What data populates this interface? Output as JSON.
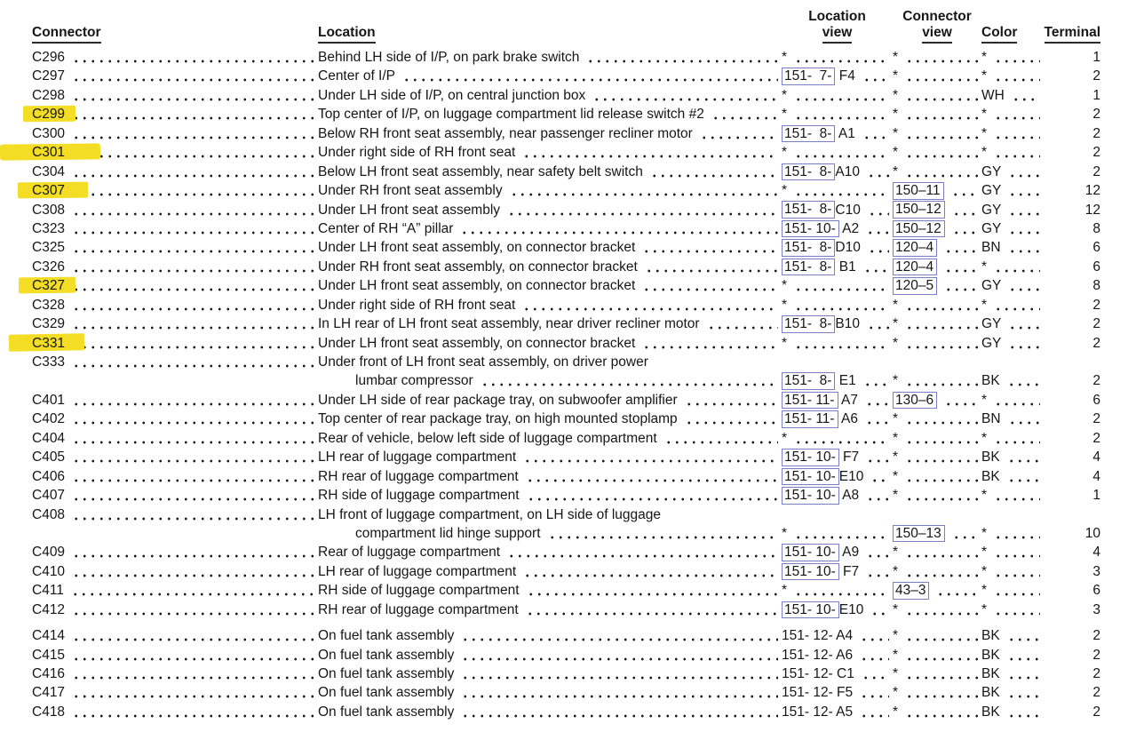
{
  "page": {
    "highlight_color": "#f3de25",
    "reference_box_color": "#7a7ec4",
    "text_color": "#161616"
  },
  "header": {
    "connector": "Connector",
    "location": "Location",
    "location_view": {
      "line1": "Location",
      "line2": "view"
    },
    "connector_view": {
      "line1": "Connector",
      "line2": "view"
    },
    "color": "Color",
    "terminal": "Terminal"
  },
  "rows": [
    {
      "connector": "C296",
      "hl": 0,
      "location": [
        "Behind LH side of I/P, on park brake switch"
      ],
      "loc_view": {
        "star": true
      },
      "conn_view": {
        "star": true
      },
      "color": "*",
      "terminal": "1"
    },
    {
      "connector": "C297",
      "hl": 0,
      "location": [
        "Center of I/P"
      ],
      "loc_view": {
        "box": "151-  7-",
        "suffix": " F4"
      },
      "conn_view": {
        "star": true
      },
      "color": "*",
      "terminal": "2"
    },
    {
      "connector": "C298",
      "hl": 0,
      "location": [
        "Under LH side of I/P, on central junction box"
      ],
      "loc_view": {
        "star": true
      },
      "conn_view": {
        "star": true
      },
      "color": "WH",
      "terminal": "1"
    },
    {
      "connector": "C299",
      "hl": 1,
      "location": [
        "Top center of I/P, on luggage compartment lid release switch #2"
      ],
      "loc_view": {
        "star": true
      },
      "conn_view": {
        "star": true
      },
      "color": "*",
      "terminal": "2"
    },
    {
      "connector": "C300",
      "hl": 0,
      "location": [
        "Below RH front seat assembly, near passenger recliner motor"
      ],
      "loc_view": {
        "box": "151-  8-",
        "suffix": " A1"
      },
      "conn_view": {
        "star": true
      },
      "color": "*",
      "terminal": "2"
    },
    {
      "connector": "C301",
      "hl": 2,
      "location": [
        "Under right side of RH front seat"
      ],
      "loc_view": {
        "star": true
      },
      "conn_view": {
        "star": true
      },
      "color": "*",
      "terminal": "2"
    },
    {
      "connector": "C304",
      "hl": 0,
      "location": [
        "Below LH front seat assembly, near safety belt switch"
      ],
      "loc_view": {
        "box": "151-  8-",
        "suffix": "A10"
      },
      "conn_view": {
        "star": true
      },
      "color": "GY",
      "terminal": "2"
    },
    {
      "connector": "C307",
      "hl": 3,
      "location": [
        "Under RH front seat assembly"
      ],
      "loc_view": {
        "star": true
      },
      "conn_view": {
        "box": "150–11"
      },
      "color": "GY",
      "terminal": "12"
    },
    {
      "connector": "C308",
      "hl": 0,
      "location": [
        "Under LH front seat assembly"
      ],
      "loc_view": {
        "box": "151-  8-",
        "suffix": "C10"
      },
      "conn_view": {
        "box": "150–12"
      },
      "color": "GY",
      "terminal": "12"
    },
    {
      "connector": "C323",
      "hl": 0,
      "location": [
        "Center of RH “A” pillar"
      ],
      "loc_view": {
        "box": "151- 10-",
        "suffix": " A2"
      },
      "conn_view": {
        "box": "150–12"
      },
      "color": "GY",
      "terminal": "8"
    },
    {
      "connector": "C325",
      "hl": 0,
      "location": [
        "Under LH front seat assembly, on connector bracket"
      ],
      "loc_view": {
        "box": "151-  8-",
        "suffix": "D10"
      },
      "conn_view": {
        "box": "120–4"
      },
      "color": "BN",
      "terminal": "6"
    },
    {
      "connector": "C326",
      "hl": 0,
      "location": [
        "Under RH front seat assembly, on connector bracket"
      ],
      "loc_view": {
        "box": "151-  8-",
        "suffix": " B1"
      },
      "conn_view": {
        "box": "120–4"
      },
      "color": "*",
      "terminal": "6"
    },
    {
      "connector": "C327",
      "hl": 4,
      "location": [
        "Under LH front seat assembly, on connector bracket"
      ],
      "loc_view": {
        "star": true
      },
      "conn_view": {
        "box": "120–5"
      },
      "color": "GY",
      "terminal": "8"
    },
    {
      "connector": "C328",
      "hl": 0,
      "location": [
        "Under right side of RH front seat"
      ],
      "loc_view": {
        "star": true
      },
      "conn_view": {
        "star": true
      },
      "color": "*",
      "terminal": "2"
    },
    {
      "connector": "C329",
      "hl": 0,
      "location": [
        "In LH rear of LH front seat assembly, near driver recliner motor"
      ],
      "loc_view": {
        "box": "151-  8-",
        "suffix": "B10"
      },
      "conn_view": {
        "star": true
      },
      "color": "GY",
      "terminal": "2"
    },
    {
      "connector": "C331",
      "hl": 5,
      "location": [
        "Under LH front seat assembly, on connector bracket"
      ],
      "loc_view": {
        "star": true
      },
      "conn_view": {
        "star": true
      },
      "color": "GY",
      "terminal": "2"
    },
    {
      "connector": "C333",
      "hl": 0,
      "location": [
        "Under front of LH front seat assembly, on driver power",
        "lumbar compressor"
      ],
      "loc_view": {
        "box": "151-  8-",
        "suffix": " E1"
      },
      "conn_view": {
        "star": true
      },
      "color": "BK",
      "terminal": "2"
    },
    {
      "connector": "C401",
      "hl": 0,
      "location": [
        "Under LH side of rear package tray, on subwoofer amplifier"
      ],
      "loc_view": {
        "box": "151- 11-",
        "suffix": " A7"
      },
      "conn_view": {
        "box": "130–6"
      },
      "color": "*",
      "terminal": "6"
    },
    {
      "connector": "C402",
      "hl": 0,
      "location": [
        "Top center of rear package tray, on high mounted stoplamp"
      ],
      "loc_view": {
        "box": "151- 11-",
        "suffix": " A6"
      },
      "conn_view": {
        "star": true
      },
      "color": "BN",
      "terminal": "2"
    },
    {
      "connector": "C404",
      "hl": 0,
      "location": [
        "Rear of vehicle, below left side of luggage compartment"
      ],
      "loc_view": {
        "star": true
      },
      "conn_view": {
        "star": true
      },
      "color": "*",
      "terminal": "2"
    },
    {
      "connector": "C405",
      "hl": 0,
      "location": [
        "LH rear of luggage compartment"
      ],
      "loc_view": {
        "box": "151- 10-",
        "suffix": " F7"
      },
      "conn_view": {
        "star": true
      },
      "color": "BK",
      "terminal": "4"
    },
    {
      "connector": "C406",
      "hl": 0,
      "location": [
        "RH rear of luggage compartment"
      ],
      "loc_view": {
        "box": "151- 10-",
        "suffix": "E10"
      },
      "conn_view": {
        "star": true
      },
      "color": "BK",
      "terminal": "4"
    },
    {
      "connector": "C407",
      "hl": 0,
      "location": [
        "RH side of luggage compartment"
      ],
      "loc_view": {
        "box": "151- 10-",
        "suffix": " A8"
      },
      "conn_view": {
        "star": true
      },
      "color": "*",
      "terminal": "1"
    },
    {
      "connector": "C408",
      "hl": 0,
      "location": [
        "LH front of luggage compartment, on LH side of luggage",
        "compartment lid hinge support"
      ],
      "loc_view": {
        "star": true
      },
      "conn_view": {
        "box": "150–13"
      },
      "color": "*",
      "terminal": "10"
    },
    {
      "connector": "C409",
      "hl": 0,
      "location": [
        "Rear of luggage compartment"
      ],
      "loc_view": {
        "box": "151- 10-",
        "suffix": " A9"
      },
      "conn_view": {
        "star": true
      },
      "color": "*",
      "terminal": "4"
    },
    {
      "connector": "C410",
      "hl": 0,
      "location": [
        "LH rear of luggage compartment"
      ],
      "loc_view": {
        "box": "151- 10-",
        "suffix": " F7"
      },
      "conn_view": {
        "star": true
      },
      "color": "*",
      "terminal": "3"
    },
    {
      "connector": "C411",
      "hl": 0,
      "location": [
        "RH side of luggage compartment"
      ],
      "loc_view": {
        "star": true
      },
      "conn_view": {
        "box": "43–3"
      },
      "color": "*",
      "terminal": "6"
    },
    {
      "connector": "C412",
      "hl": 0,
      "location": [
        "RH rear of luggage compartment"
      ],
      "loc_view": {
        "box": "151- 10-",
        "suffix": "E10"
      },
      "conn_view": {
        "star": true
      },
      "color": "*",
      "terminal": "3"
    },
    {
      "connector": "C414",
      "hl": 0,
      "gap": true,
      "location": [
        "On fuel tank assembly"
      ],
      "loc_view": {
        "plain": "151- 12- A4"
      },
      "conn_view": {
        "star": true
      },
      "color": "BK",
      "terminal": "2"
    },
    {
      "connector": "C415",
      "hl": 0,
      "location": [
        "On fuel tank assembly"
      ],
      "loc_view": {
        "plain": "151- 12- A6"
      },
      "conn_view": {
        "star": true
      },
      "color": "BK",
      "terminal": "2"
    },
    {
      "connector": "C416",
      "hl": 0,
      "location": [
        "On fuel tank assembly"
      ],
      "loc_view": {
        "plain": "151- 12- C1"
      },
      "conn_view": {
        "star": true
      },
      "color": "BK",
      "terminal": "2"
    },
    {
      "connector": "C417",
      "hl": 0,
      "location": [
        "On fuel tank assembly"
      ],
      "loc_view": {
        "plain": "151- 12- F5"
      },
      "conn_view": {
        "star": true
      },
      "color": "BK",
      "terminal": "2"
    },
    {
      "connector": "C418",
      "hl": 0,
      "location": [
        "On fuel tank assembly"
      ],
      "loc_view": {
        "plain": "151- 12- A5"
      },
      "conn_view": {
        "star": true
      },
      "color": "BK",
      "terminal": "2"
    }
  ]
}
